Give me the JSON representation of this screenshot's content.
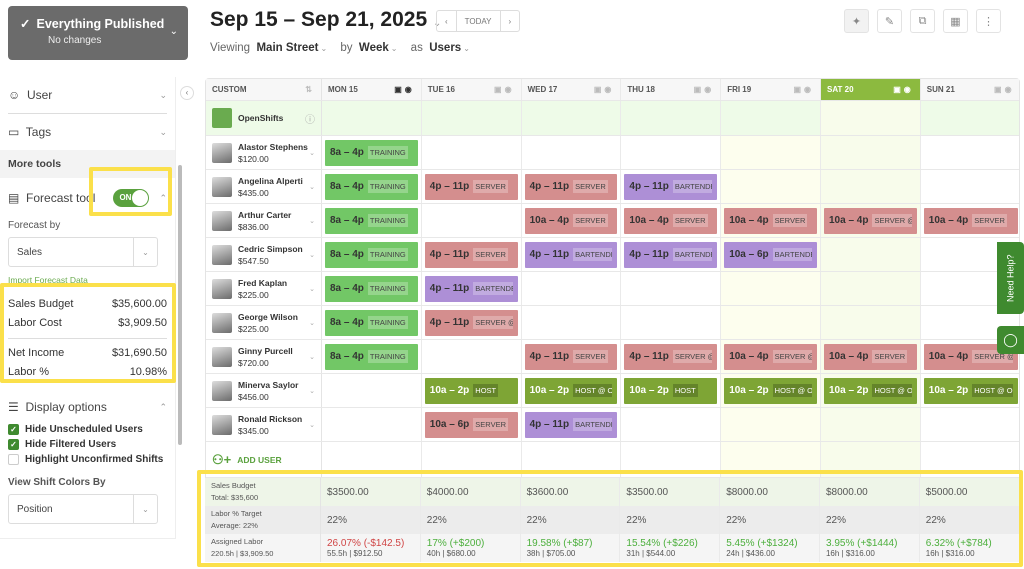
{
  "publish": {
    "title": "Everything Published",
    "subtitle": "No changes"
  },
  "header": {
    "date_range": "Sep 15 – Sep 21, 2025",
    "today": "TODAY",
    "viewing_label": "Viewing",
    "location": "Main Street",
    "by_label": "by",
    "period": "Week",
    "as_label": "as",
    "mode": "Users"
  },
  "sidebar": {
    "user": "User",
    "tags": "Tags",
    "more_tools": "More tools",
    "forecast_tool": "Forecast tool",
    "toggle": "ON",
    "forecast_by": "Forecast by",
    "forecast_value": "Sales",
    "import": "Import Forecast Data",
    "stats": [
      {
        "label": "Sales Budget",
        "value": "$35,600.00"
      },
      {
        "label": "Labor Cost",
        "value": "$3,909.50"
      },
      {
        "label": "Net Income",
        "value": "$31,690.50"
      },
      {
        "label": "Labor %",
        "value": "10.98%"
      }
    ],
    "display_options": "Display options",
    "checks": [
      {
        "label": "Hide Unscheduled Users",
        "checked": true
      },
      {
        "label": "Hide Filtered Users",
        "checked": true
      },
      {
        "label": "Highlight Unconfirmed Shifts",
        "checked": false
      }
    ],
    "color_by_label": "View Shift Colors By",
    "color_by": "Position"
  },
  "grid": {
    "custom": "CUSTOM",
    "days": [
      "MON 15",
      "TUE 16",
      "WED 17",
      "THU 18",
      "FRI 19",
      "SAT 20",
      "SUN 21"
    ],
    "open_shifts": "OpenShifts",
    "add_user": "ADD USER",
    "employees": [
      {
        "name": "Alastor Stephens",
        "pay": "$120.00",
        "shifts": [
          [
            "8a – 4p",
            "TRAINING",
            "TRAINING"
          ],
          null,
          null,
          null,
          null,
          null,
          null
        ]
      },
      {
        "name": "Angelina Alperti",
        "pay": "$435.00",
        "shifts": [
          [
            "8a – 4p",
            "TRAINING",
            "TRAINING"
          ],
          [
            "4p – 11p",
            "SERVER",
            "SERVER"
          ],
          [
            "4p – 11p",
            "SERVER",
            "SERVER"
          ],
          [
            "4p – 11p",
            "BARTENDER",
            "BARTENDER"
          ],
          null,
          null,
          null
        ]
      },
      {
        "name": "Arthur Carter",
        "pay": "$836.00",
        "shifts": [
          [
            "8a – 4p",
            "TRAINING",
            "TRAINING"
          ],
          null,
          [
            "10a – 4p",
            "SERVER",
            "SERVER"
          ],
          [
            "10a – 4p",
            "SERVER",
            "SERVER"
          ],
          [
            "10a – 4p",
            "SERVER",
            "SERVER"
          ],
          [
            "10a – 4p",
            "SERVER @ V",
            "SERVER"
          ],
          [
            "10a – 4p",
            "SERVER",
            "SERVER"
          ]
        ]
      },
      {
        "name": "Cedric Simpson",
        "pay": "$547.50",
        "shifts": [
          [
            "8a – 4p",
            "TRAINING",
            "TRAINING"
          ],
          [
            "4p – 11p",
            "SERVER",
            "SERVER"
          ],
          [
            "4p – 11p",
            "BARTENDER",
            "BARTENDER"
          ],
          [
            "4p – 11p",
            "BARTENDER",
            "BARTENDER"
          ],
          [
            "10a – 6p",
            "BARTENDER",
            "BARTENDER"
          ],
          null,
          null
        ]
      },
      {
        "name": "Fred Kaplan",
        "pay": "$225.00",
        "shifts": [
          [
            "8a – 4p",
            "TRAINING",
            "TRAINING"
          ],
          [
            "4p – 11p",
            "BARTENDER",
            "BARTENDER"
          ],
          null,
          null,
          null,
          null,
          null
        ]
      },
      {
        "name": "George Wilson",
        "pay": "$225.00",
        "shifts": [
          [
            "8a – 4p",
            "TRAINING",
            "TRAINING"
          ],
          [
            "4p – 11p",
            "SERVER @ V",
            "SERVER"
          ],
          null,
          null,
          null,
          null,
          null
        ]
      },
      {
        "name": "Ginny Purcell",
        "pay": "$720.00",
        "shifts": [
          [
            "8a – 4p",
            "TRAINING",
            "TRAINING"
          ],
          null,
          [
            "4p – 11p",
            "SERVER",
            "SERVER"
          ],
          [
            "4p – 11p",
            "SERVER @ V",
            "SERVER"
          ],
          [
            "10a – 4p",
            "SERVER @ V",
            "SERVER"
          ],
          [
            "10a – 4p",
            "SERVER",
            "SERVER"
          ],
          [
            "10a – 4p",
            "SERVER @ V",
            "SERVER"
          ]
        ]
      },
      {
        "name": "Minerva Saylor",
        "pay": "$456.00",
        "shifts": [
          null,
          [
            "10a – 2p",
            "HOST",
            "HOST"
          ],
          [
            "10a – 2p",
            "HOST @ ON",
            "HOST"
          ],
          [
            "10a – 2p",
            "HOST",
            "HOST"
          ],
          [
            "10a – 2p",
            "HOST @ ON",
            "HOST"
          ],
          [
            "10a – 2p",
            "HOST @ ON",
            "HOST"
          ],
          [
            "10a – 2p",
            "HOST @ ON",
            "HOST"
          ]
        ]
      },
      {
        "name": "Ronald Rickson",
        "pay": "$345.00",
        "shifts": [
          null,
          [
            "10a – 6p",
            "SERVER",
            "SERVER"
          ],
          [
            "4p – 11p",
            "BARTENDER",
            "BARTENDER"
          ],
          null,
          null,
          null,
          null
        ]
      }
    ]
  },
  "summary": {
    "sales": {
      "label": "Sales Budget",
      "sub": "Total: $35,600",
      "values": [
        "$3500.00",
        "$4000.00",
        "$3600.00",
        "$3500.00",
        "$8000.00",
        "$8000.00",
        "$5000.00"
      ]
    },
    "target": {
      "label": "Labor % Target",
      "sub": "Average: 22%",
      "values": [
        "22%",
        "22%",
        "22%",
        "22%",
        "22%",
        "22%",
        "22%"
      ]
    },
    "labor": {
      "label": "Assigned Labor",
      "sub": "220.5h | $3,909.50",
      "values": [
        [
          "26.07% (-$142.5)",
          "55.5h | $912.50",
          true
        ],
        [
          "17% (+$200)",
          "40h | $680.00",
          false
        ],
        [
          "19.58% (+$87)",
          "38h | $705.00",
          false
        ],
        [
          "15.54% (+$226)",
          "31h | $544.00",
          false
        ],
        [
          "5.45% (+$1324)",
          "24h | $436.00",
          false
        ],
        [
          "3.95% (+$1444)",
          "16h | $316.00",
          false
        ],
        [
          "6.32% (+$784)",
          "16h | $316.00",
          false
        ]
      ]
    }
  },
  "help": "Need Help?"
}
